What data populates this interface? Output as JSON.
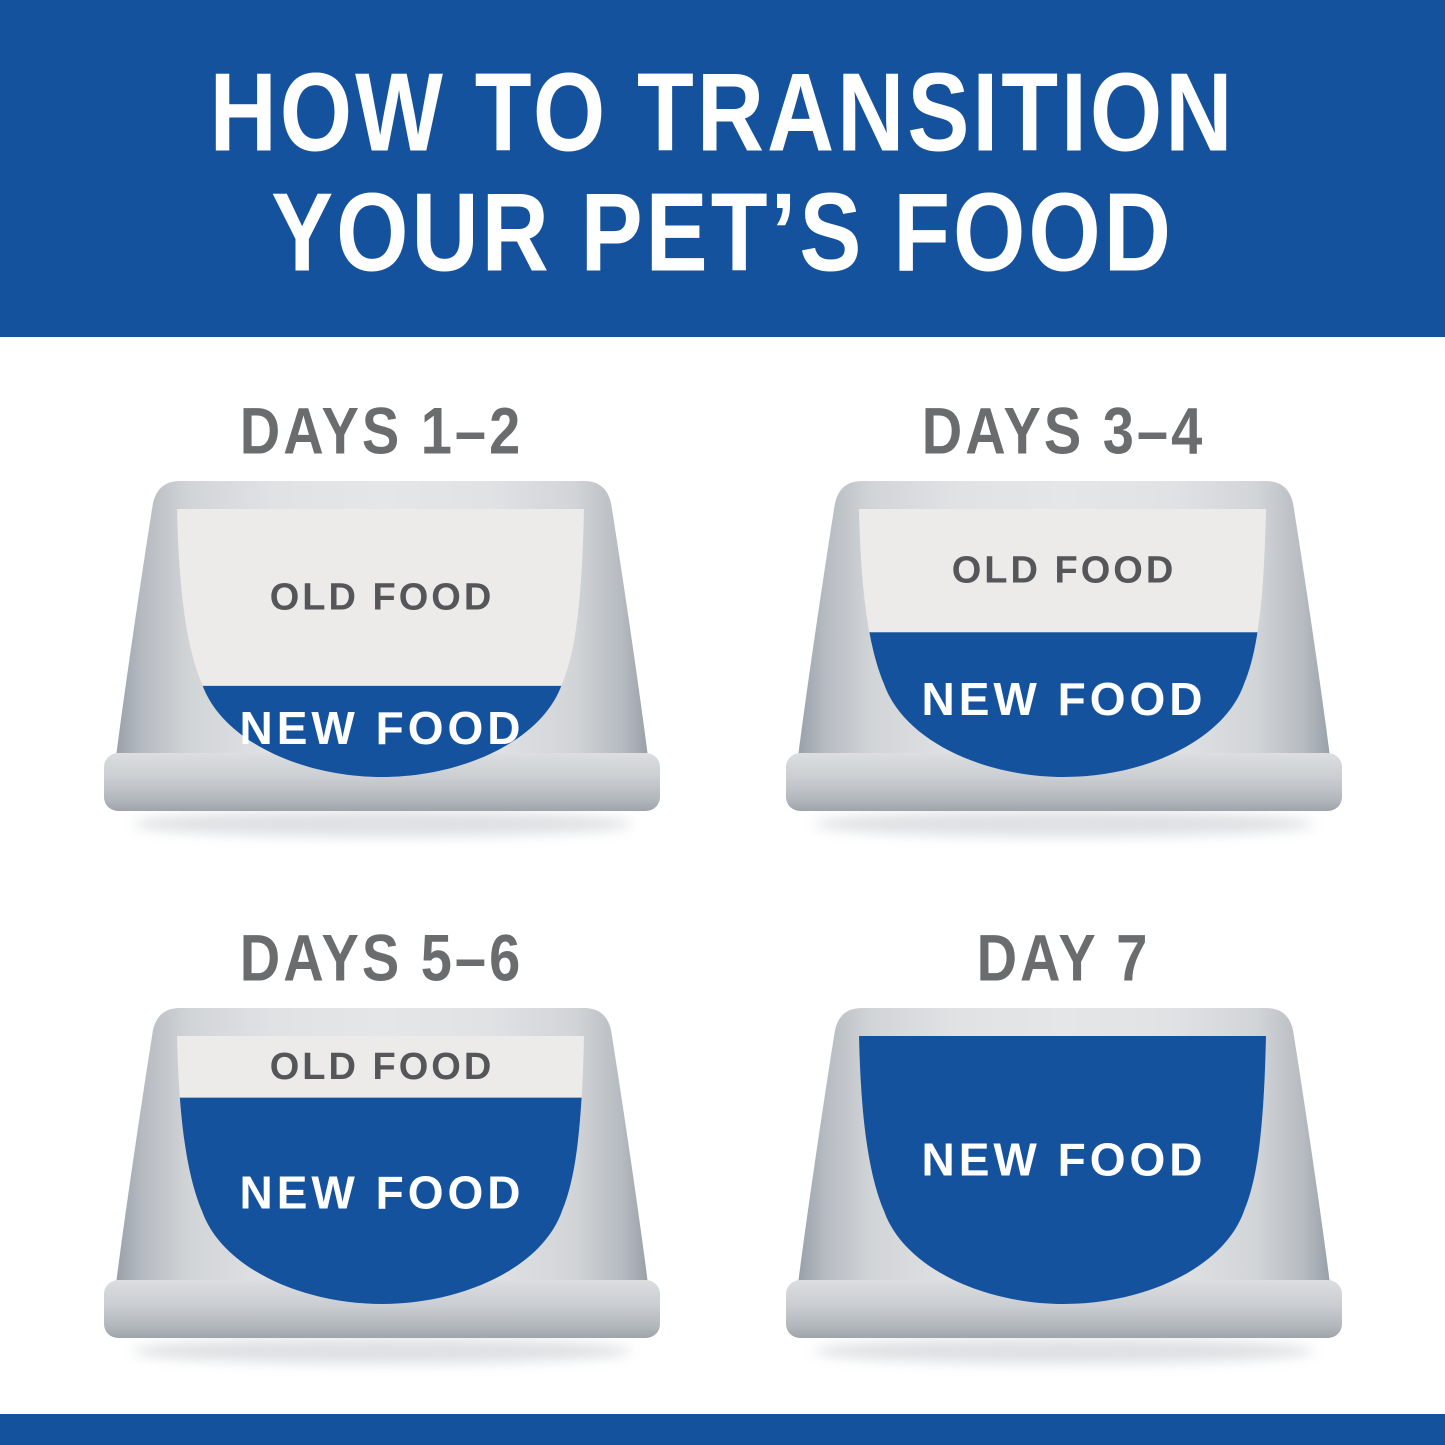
{
  "header": {
    "title_line1": "HOW TO TRANSITION",
    "title_line2": "YOUR PET’S FOOD"
  },
  "colors": {
    "brand_blue": "#15529e",
    "title_text": "#ffffff",
    "heading_gray": "#6b6c6e",
    "old_food_bg": "#ecebe9",
    "old_food_text": "#55565a",
    "new_food_text": "#ffffff"
  },
  "bowls": [
    {
      "heading": "DAYS 1–2",
      "old_food_label": "OLD FOOD",
      "new_food_label": "NEW FOOD",
      "old_food_fill_pct": 66,
      "new_food_fill_pct": 34
    },
    {
      "heading": "DAYS 3–4",
      "old_food_label": "OLD FOOD",
      "new_food_label": "NEW FOOD",
      "old_food_fill_pct": 46,
      "new_food_fill_pct": 54
    },
    {
      "heading": "DAYS 5–6",
      "old_food_label": "OLD FOOD",
      "new_food_label": "NEW FOOD",
      "old_food_fill_pct": 23,
      "new_food_fill_pct": 77
    },
    {
      "heading": "DAY 7",
      "old_food_label": "",
      "new_food_label": "NEW FOOD",
      "old_food_fill_pct": 0,
      "new_food_fill_pct": 100
    }
  ]
}
